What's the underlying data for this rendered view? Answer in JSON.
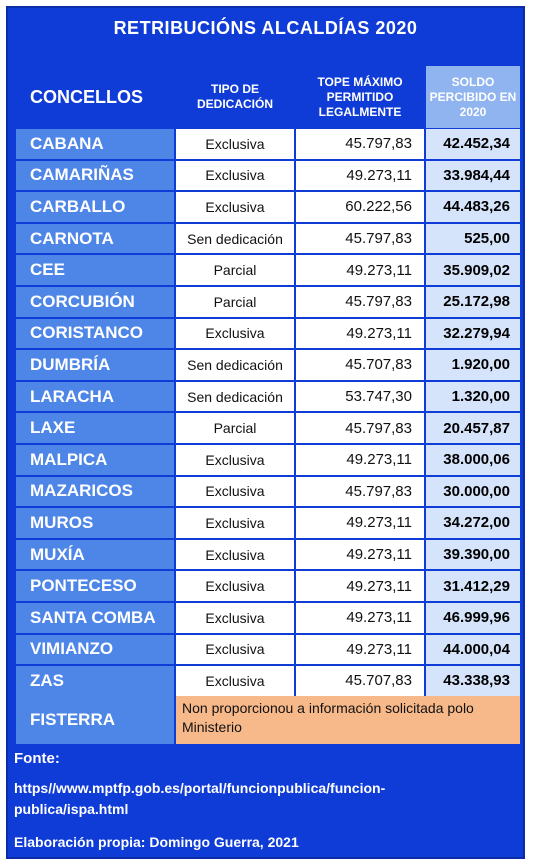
{
  "title": "RETRIBUCIÓNS  ALCALDÍAS 2020",
  "headers": {
    "concellos": "CONCELLOS",
    "tipo": [
      "TIPO DE",
      "DEDICACIÓN"
    ],
    "tope": [
      "TOPE MÁXIMO",
      "PERMITIDO",
      "LEGALMENTE"
    ],
    "soldo": [
      "SOLDO",
      "PERCIBIDO EN",
      "2020"
    ]
  },
  "rows": [
    {
      "concello": "CABANA",
      "tipo": "Exclusiva",
      "tope": "45.797,83",
      "soldo": "42.452,34"
    },
    {
      "concello": "CAMARIÑAS",
      "tipo": "Exclusiva",
      "tope": "49.273,11",
      "soldo": "33.984,44"
    },
    {
      "concello": "CARBALLO",
      "tipo": "Exclusiva",
      "tope": "60.222,56",
      "soldo": "44.483,26"
    },
    {
      "concello": "CARNOTA",
      "tipo": "Sen dedicación",
      "tope": "45.797,83",
      "soldo": "525,00"
    },
    {
      "concello": "CEE",
      "tipo": "Parcial",
      "tope": "49.273,11",
      "soldo": "35.909,02"
    },
    {
      "concello": "CORCUBIÓN",
      "tipo": "Parcial",
      "tope": "45.797,83",
      "soldo": "25.172,98"
    },
    {
      "concello": "CORISTANCO",
      "tipo": "Exclusiva",
      "tope": "49.273,11",
      "soldo": "32.279,94"
    },
    {
      "concello": "DUMBRÍA",
      "tipo": "Sen dedicación",
      "tope": "45.707,83",
      "soldo": "1.920,00"
    },
    {
      "concello": "LARACHA",
      "tipo": "Sen dedicación",
      "tope": "53.747,30",
      "soldo": "1.320,00"
    },
    {
      "concello": "LAXE",
      "tipo": "Parcial",
      "tope": "45.797,83",
      "soldo": "20.457,87"
    },
    {
      "concello": "MALPICA",
      "tipo": "Exclusiva",
      "tope": "49.273,11",
      "soldo": "38.000,06"
    },
    {
      "concello": "MAZARICOS",
      "tipo": "Exclusiva",
      "tope": "45.797,83",
      "soldo": "30.000,00"
    },
    {
      "concello": "MUROS",
      "tipo": "Exclusiva",
      "tope": "49.273,11",
      "soldo": "34.272,00"
    },
    {
      "concello": "MUXÍA",
      "tipo": "Exclusiva",
      "tope": "49.273,11",
      "soldo": "39.390,00"
    },
    {
      "concello": "PONTECESO",
      "tipo": "Exclusiva",
      "tope": "49.273,11",
      "soldo": "31.412,29"
    },
    {
      "concello": "SANTA COMBA",
      "tipo": "Exclusiva",
      "tope": "49.273,11",
      "soldo": "46.999,96"
    },
    {
      "concello": "VIMIANZO",
      "tipo": "Exclusiva",
      "tope": "49.273,11",
      "soldo": "44.000,04"
    },
    {
      "concello": "ZAS",
      "tipo": "Exclusiva",
      "tope": "45.707,83",
      "soldo": "43.338,93"
    }
  ],
  "fisterra": {
    "concello": "FISTERRA",
    "note": "Non proporcionou a información solicitada polo Ministerio"
  },
  "footer": {
    "fonte_label": "Fonte:",
    "url": "https//www.mptfp.gob.es/portal/funcionpublica/funcion-publica/ispa.html",
    "credit": "Elaboración propia: Domingo Guerra, 2021"
  },
  "colors": {
    "panel": "#0f3bd6",
    "name_cell": "#4e86e8",
    "soldo_cell": "#d6e4fb",
    "note_cell": "#f7b98a"
  }
}
